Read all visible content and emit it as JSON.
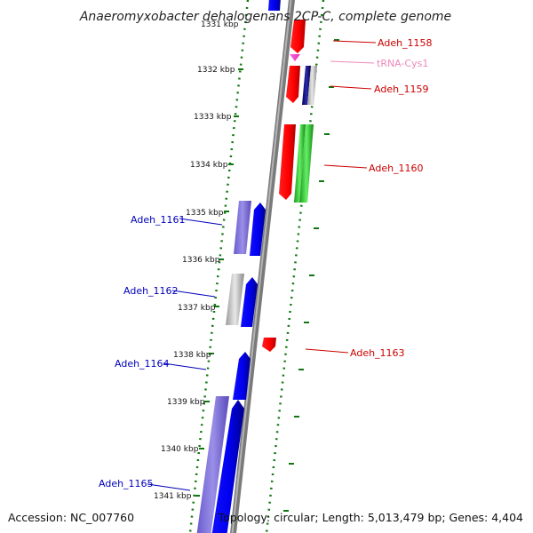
{
  "title": "Anaeromyxobacter dehalogenans 2CP-C, complete genome",
  "footer": {
    "accession": "Accession: NC_007760",
    "summary": "Topology: circular; Length: 5,013,479 bp; Genes: 4,404"
  },
  "colors": {
    "forward_label": "#cc0000",
    "reverse_label": "#0000bb",
    "trna_label": "#ee88bb",
    "backbone": "#888888",
    "tick": "#117711"
  },
  "ruler_labels": [
    "1331 kbp",
    "1332 kbp",
    "1333 kbp",
    "1334 kbp",
    "1335 kbp",
    "1336 kbp",
    "1337 kbp",
    "1338 kbp",
    "1339 kbp",
    "1340 kbp",
    "1341 kbp"
  ],
  "genes": [
    {
      "label": "Adeh_1158",
      "strand": "forward"
    },
    {
      "label": "tRNA-Cys1",
      "strand": "forward"
    },
    {
      "label": "Adeh_1159",
      "strand": "forward"
    },
    {
      "label": "Adeh_1160",
      "strand": "forward"
    },
    {
      "label": "Adeh_1161",
      "strand": "reverse"
    },
    {
      "label": "Adeh_1162",
      "strand": "reverse"
    },
    {
      "label": "Adeh_1163",
      "strand": "forward"
    },
    {
      "label": "Adeh_1164",
      "strand": "reverse"
    },
    {
      "label": "Adeh_1165",
      "strand": "reverse"
    }
  ]
}
